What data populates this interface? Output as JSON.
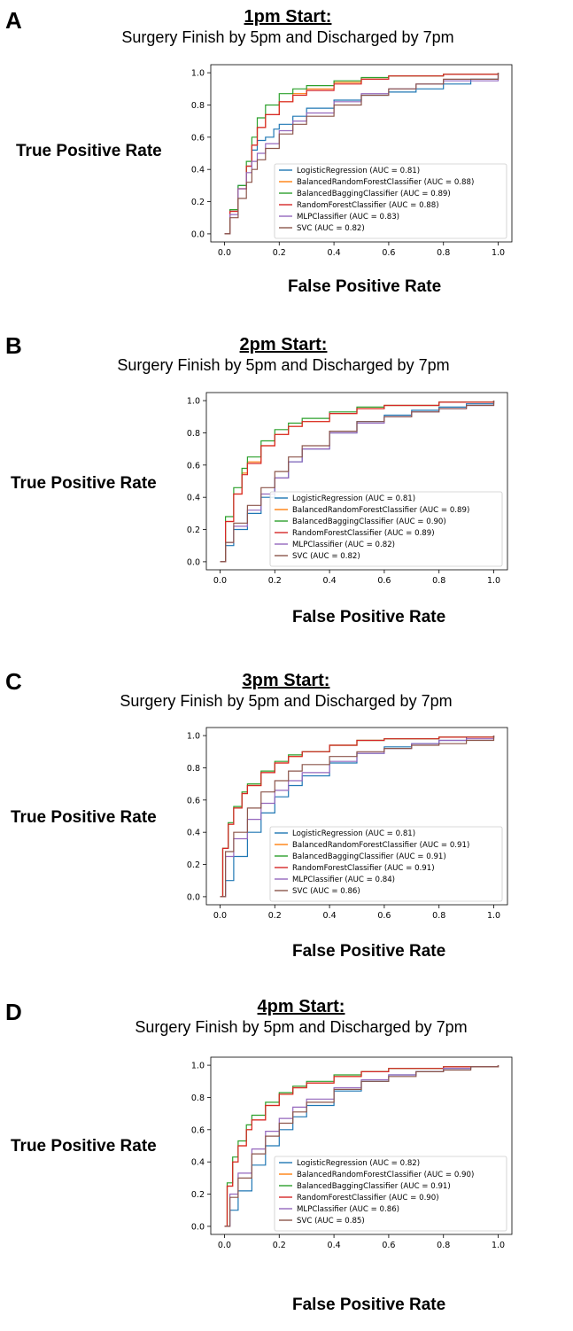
{
  "figure": {
    "colors": {
      "LogisticRegression": "#1f77b4",
      "BalancedRandomForestClassifier": "#ff7f0e",
      "BalancedBaggingClassifier": "#2ca02c",
      "RandomForestClassifier": "#d62728",
      "MLPClassifier": "#9467bd",
      "SVC": "#8c564b"
    }
  },
  "chart_data": [
    {
      "panel_label": "A",
      "type": "line",
      "title": "1pm Start:",
      "subtitle": "Surgery Finish by 5pm and Discharged by 7pm",
      "xlabel": "False Positive Rate",
      "ylabel": "True Positive Rate",
      "xlim": [
        -0.05,
        1.05
      ],
      "ylim": [
        -0.05,
        1.05
      ],
      "xticks": [
        "0.0",
        "0.2",
        "0.4",
        "0.6",
        "0.8",
        "1.0"
      ],
      "yticks": [
        "0.0",
        "0.2",
        "0.4",
        "0.6",
        "0.8",
        "1.0"
      ],
      "grid": false,
      "legend": "lower-right",
      "series": [
        {
          "name": "LogisticRegression (AUC = 0.81)",
          "color": "#1f77b4",
          "x": [
            0,
            0.02,
            0.05,
            0.08,
            0.1,
            0.12,
            0.15,
            0.18,
            0.2,
            0.25,
            0.3,
            0.4,
            0.5,
            0.6,
            0.7,
            0.8,
            0.9,
            1.0
          ],
          "y": [
            0,
            0.15,
            0.3,
            0.42,
            0.52,
            0.58,
            0.6,
            0.65,
            0.68,
            0.73,
            0.78,
            0.83,
            0.86,
            0.88,
            0.9,
            0.93,
            0.96,
            1.0
          ]
        },
        {
          "name": "BalancedRandomForestClassifier (AUC = 0.88)",
          "color": "#ff7f0e",
          "x": [
            0,
            0.02,
            0.05,
            0.08,
            0.1,
            0.12,
            0.15,
            0.2,
            0.25,
            0.3,
            0.4,
            0.5,
            0.6,
            0.8,
            1.0
          ],
          "y": [
            0,
            0.14,
            0.28,
            0.42,
            0.55,
            0.66,
            0.74,
            0.82,
            0.87,
            0.9,
            0.94,
            0.96,
            0.98,
            0.99,
            1.0
          ]
        },
        {
          "name": "BalancedBaggingClassifier (AUC = 0.89)",
          "color": "#2ca02c",
          "x": [
            0,
            0.02,
            0.05,
            0.08,
            0.1,
            0.12,
            0.15,
            0.2,
            0.25,
            0.3,
            0.4,
            0.5,
            0.6,
            0.8,
            1.0
          ],
          "y": [
            0,
            0.15,
            0.3,
            0.45,
            0.6,
            0.72,
            0.8,
            0.87,
            0.9,
            0.92,
            0.95,
            0.97,
            0.98,
            0.99,
            1.0
          ]
        },
        {
          "name": "RandomForestClassifier (AUC = 0.88)",
          "color": "#d62728",
          "x": [
            0,
            0.02,
            0.05,
            0.08,
            0.1,
            0.12,
            0.15,
            0.2,
            0.25,
            0.3,
            0.4,
            0.5,
            0.6,
            0.8,
            1.0
          ],
          "y": [
            0,
            0.14,
            0.28,
            0.42,
            0.55,
            0.66,
            0.74,
            0.82,
            0.86,
            0.89,
            0.93,
            0.96,
            0.98,
            0.99,
            1.0
          ]
        },
        {
          "name": "MLPClassifier (AUC = 0.83)",
          "color": "#9467bd",
          "x": [
            0,
            0.02,
            0.05,
            0.08,
            0.1,
            0.12,
            0.15,
            0.2,
            0.25,
            0.3,
            0.4,
            0.5,
            0.6,
            0.7,
            0.8,
            1.0
          ],
          "y": [
            0,
            0.12,
            0.28,
            0.38,
            0.45,
            0.5,
            0.56,
            0.64,
            0.7,
            0.75,
            0.82,
            0.87,
            0.9,
            0.93,
            0.95,
            1.0
          ]
        },
        {
          "name": "SVC (AUC = 0.82)",
          "color": "#8c564b",
          "x": [
            0,
            0.02,
            0.05,
            0.08,
            0.1,
            0.12,
            0.15,
            0.2,
            0.25,
            0.3,
            0.4,
            0.5,
            0.6,
            0.7,
            0.8,
            1.0
          ],
          "y": [
            0,
            0.1,
            0.22,
            0.32,
            0.4,
            0.46,
            0.53,
            0.62,
            0.68,
            0.73,
            0.8,
            0.86,
            0.9,
            0.93,
            0.96,
            1.0
          ]
        }
      ]
    },
    {
      "panel_label": "B",
      "type": "line",
      "title": "2pm Start:",
      "subtitle": "Surgery Finish by 5pm and Discharged by 7pm",
      "xlabel": "False Positive Rate",
      "ylabel": "True Positive Rate",
      "xlim": [
        -0.05,
        1.05
      ],
      "ylim": [
        -0.05,
        1.05
      ],
      "xticks": [
        "0.0",
        "0.2",
        "0.4",
        "0.6",
        "0.8",
        "1.0"
      ],
      "yticks": [
        "0.0",
        "0.2",
        "0.4",
        "0.6",
        "0.8",
        "1.0"
      ],
      "grid": false,
      "legend": "lower-right",
      "series": [
        {
          "name": "LogisticRegression (AUC = 0.81)",
          "color": "#1f77b4",
          "x": [
            0,
            0.02,
            0.05,
            0.1,
            0.15,
            0.2,
            0.25,
            0.3,
            0.4,
            0.5,
            0.6,
            0.7,
            0.8,
            0.9,
            1.0
          ],
          "y": [
            0,
            0.1,
            0.2,
            0.3,
            0.4,
            0.52,
            0.62,
            0.7,
            0.8,
            0.87,
            0.91,
            0.94,
            0.96,
            0.98,
            1.0
          ]
        },
        {
          "name": "BalancedRandomForestClassifier (AUC = 0.89)",
          "color": "#ff7f0e",
          "x": [
            0,
            0.02,
            0.05,
            0.08,
            0.1,
            0.15,
            0.2,
            0.25,
            0.3,
            0.4,
            0.5,
            0.6,
            0.8,
            1.0
          ],
          "y": [
            0,
            0.25,
            0.42,
            0.55,
            0.62,
            0.72,
            0.79,
            0.84,
            0.87,
            0.92,
            0.95,
            0.97,
            0.99,
            1.0
          ]
        },
        {
          "name": "BalancedBaggingClassifier (AUC = 0.90)",
          "color": "#2ca02c",
          "x": [
            0,
            0.02,
            0.05,
            0.08,
            0.1,
            0.15,
            0.2,
            0.25,
            0.3,
            0.4,
            0.5,
            0.6,
            0.8,
            1.0
          ],
          "y": [
            0,
            0.28,
            0.46,
            0.58,
            0.65,
            0.75,
            0.82,
            0.86,
            0.89,
            0.93,
            0.96,
            0.97,
            0.99,
            1.0
          ]
        },
        {
          "name": "RandomForestClassifier (AUC = 0.89)",
          "color": "#d62728",
          "x": [
            0,
            0.02,
            0.05,
            0.08,
            0.1,
            0.15,
            0.2,
            0.25,
            0.3,
            0.4,
            0.5,
            0.6,
            0.8,
            1.0
          ],
          "y": [
            0,
            0.25,
            0.42,
            0.54,
            0.61,
            0.72,
            0.79,
            0.84,
            0.87,
            0.92,
            0.95,
            0.97,
            0.99,
            1.0
          ]
        },
        {
          "name": "MLPClassifier (AUC = 0.82)",
          "color": "#9467bd",
          "x": [
            0,
            0.02,
            0.05,
            0.1,
            0.15,
            0.2,
            0.25,
            0.3,
            0.4,
            0.5,
            0.6,
            0.7,
            0.8,
            0.9,
            1.0
          ],
          "y": [
            0,
            0.12,
            0.22,
            0.32,
            0.42,
            0.52,
            0.62,
            0.7,
            0.8,
            0.86,
            0.9,
            0.93,
            0.95,
            0.97,
            1.0
          ]
        },
        {
          "name": "SVC (AUC = 0.82)",
          "color": "#8c564b",
          "x": [
            0,
            0.02,
            0.05,
            0.1,
            0.15,
            0.2,
            0.25,
            0.3,
            0.4,
            0.5,
            0.6,
            0.7,
            0.8,
            0.9,
            1.0
          ],
          "y": [
            0,
            0.12,
            0.24,
            0.35,
            0.46,
            0.56,
            0.65,
            0.72,
            0.81,
            0.87,
            0.9,
            0.93,
            0.95,
            0.97,
            1.0
          ]
        }
      ]
    },
    {
      "panel_label": "C",
      "type": "line",
      "title": "3pm Start:",
      "subtitle": "Surgery Finish by 5pm and Discharged by 7pm",
      "xlabel": "False Positive Rate",
      "ylabel": "True Positive Rate",
      "xlim": [
        -0.05,
        1.05
      ],
      "ylim": [
        -0.05,
        1.05
      ],
      "xticks": [
        "0.0",
        "0.2",
        "0.4",
        "0.6",
        "0.8",
        "1.0"
      ],
      "yticks": [
        "0.0",
        "0.2",
        "0.4",
        "0.6",
        "0.8",
        "1.0"
      ],
      "grid": false,
      "legend": "lower-right",
      "series": [
        {
          "name": "LogisticRegression (AUC = 0.81)",
          "color": "#1f77b4",
          "x": [
            0,
            0.02,
            0.05,
            0.1,
            0.15,
            0.2,
            0.25,
            0.3,
            0.4,
            0.5,
            0.6,
            0.7,
            0.8,
            0.9,
            1.0
          ],
          "y": [
            0,
            0.1,
            0.25,
            0.4,
            0.52,
            0.62,
            0.69,
            0.75,
            0.83,
            0.89,
            0.93,
            0.95,
            0.97,
            0.99,
            1.0
          ]
        },
        {
          "name": "BalancedRandomForestClassifier (AUC = 0.91)",
          "color": "#ff7f0e",
          "x": [
            0,
            0.01,
            0.03,
            0.05,
            0.08,
            0.1,
            0.15,
            0.2,
            0.25,
            0.3,
            0.4,
            0.5,
            0.6,
            0.8,
            1.0
          ],
          "y": [
            0,
            0.3,
            0.45,
            0.55,
            0.64,
            0.69,
            0.77,
            0.83,
            0.87,
            0.9,
            0.94,
            0.97,
            0.98,
            0.99,
            1.0
          ]
        },
        {
          "name": "BalancedBaggingClassifier (AUC = 0.91)",
          "color": "#2ca02c",
          "x": [
            0,
            0.01,
            0.03,
            0.05,
            0.08,
            0.1,
            0.15,
            0.2,
            0.25,
            0.3,
            0.4,
            0.5,
            0.6,
            0.8,
            1.0
          ],
          "y": [
            0,
            0.3,
            0.46,
            0.56,
            0.65,
            0.7,
            0.78,
            0.84,
            0.88,
            0.9,
            0.94,
            0.97,
            0.98,
            0.99,
            1.0
          ]
        },
        {
          "name": "RandomForestClassifier (AUC = 0.91)",
          "color": "#d62728",
          "x": [
            0,
            0.01,
            0.03,
            0.05,
            0.08,
            0.1,
            0.15,
            0.2,
            0.25,
            0.3,
            0.4,
            0.5,
            0.6,
            0.8,
            1.0
          ],
          "y": [
            0,
            0.3,
            0.45,
            0.55,
            0.64,
            0.69,
            0.77,
            0.83,
            0.87,
            0.9,
            0.94,
            0.97,
            0.98,
            0.99,
            1.0
          ]
        },
        {
          "name": "MLPClassifier (AUC = 0.84)",
          "color": "#9467bd",
          "x": [
            0,
            0.02,
            0.05,
            0.1,
            0.15,
            0.2,
            0.25,
            0.3,
            0.4,
            0.5,
            0.6,
            0.7,
            0.8,
            0.9,
            1.0
          ],
          "y": [
            0,
            0.25,
            0.36,
            0.48,
            0.58,
            0.66,
            0.72,
            0.77,
            0.84,
            0.89,
            0.92,
            0.95,
            0.97,
            0.98,
            1.0
          ]
        },
        {
          "name": "SVC (AUC = 0.86)",
          "color": "#8c564b",
          "x": [
            0,
            0.02,
            0.05,
            0.1,
            0.15,
            0.2,
            0.25,
            0.3,
            0.4,
            0.5,
            0.6,
            0.7,
            0.8,
            0.9,
            1.0
          ],
          "y": [
            0,
            0.28,
            0.4,
            0.55,
            0.65,
            0.72,
            0.78,
            0.82,
            0.87,
            0.9,
            0.92,
            0.94,
            0.95,
            0.97,
            1.0
          ]
        }
      ]
    },
    {
      "panel_label": "D",
      "type": "line",
      "title": "4pm Start:",
      "subtitle": "Surgery Finish by 5pm and Discharged by 7pm",
      "xlabel": "False Positive Rate",
      "ylabel": "True Positive Rate",
      "xlim": [
        -0.05,
        1.05
      ],
      "ylim": [
        -0.05,
        1.05
      ],
      "xticks": [
        "0.0",
        "0.2",
        "0.4",
        "0.6",
        "0.8",
        "1.0"
      ],
      "yticks": [
        "0.0",
        "0.2",
        "0.4",
        "0.6",
        "0.8",
        "1.0"
      ],
      "grid": false,
      "legend": "lower-right",
      "series": [
        {
          "name": "LogisticRegression (AUC = 0.82)",
          "color": "#1f77b4",
          "x": [
            0,
            0.02,
            0.05,
            0.1,
            0.15,
            0.2,
            0.25,
            0.3,
            0.4,
            0.5,
            0.6,
            0.7,
            0.8,
            0.9,
            1.0
          ],
          "y": [
            0,
            0.1,
            0.22,
            0.38,
            0.5,
            0.6,
            0.68,
            0.75,
            0.84,
            0.9,
            0.94,
            0.96,
            0.98,
            0.99,
            1.0
          ]
        },
        {
          "name": "BalancedRandomForestClassifier (AUC = 0.90)",
          "color": "#ff7f0e",
          "x": [
            0,
            0.01,
            0.03,
            0.05,
            0.08,
            0.1,
            0.15,
            0.2,
            0.25,
            0.3,
            0.4,
            0.5,
            0.6,
            0.8,
            1.0
          ],
          "y": [
            0,
            0.25,
            0.4,
            0.5,
            0.6,
            0.66,
            0.75,
            0.82,
            0.86,
            0.89,
            0.93,
            0.96,
            0.98,
            0.99,
            1.0
          ]
        },
        {
          "name": "BalancedBaggingClassifier (AUC = 0.91)",
          "color": "#2ca02c",
          "x": [
            0,
            0.01,
            0.03,
            0.05,
            0.08,
            0.1,
            0.15,
            0.2,
            0.25,
            0.3,
            0.4,
            0.5,
            0.6,
            0.8,
            1.0
          ],
          "y": [
            0,
            0.27,
            0.43,
            0.53,
            0.63,
            0.69,
            0.77,
            0.83,
            0.87,
            0.9,
            0.94,
            0.96,
            0.98,
            0.99,
            1.0
          ]
        },
        {
          "name": "RandomForestClassifier (AUC = 0.90)",
          "color": "#d62728",
          "x": [
            0,
            0.01,
            0.03,
            0.05,
            0.08,
            0.1,
            0.15,
            0.2,
            0.25,
            0.3,
            0.4,
            0.5,
            0.6,
            0.8,
            1.0
          ],
          "y": [
            0,
            0.25,
            0.4,
            0.5,
            0.6,
            0.66,
            0.75,
            0.82,
            0.86,
            0.89,
            0.93,
            0.96,
            0.98,
            0.99,
            1.0
          ]
        },
        {
          "name": "MLPClassifier (AUC = 0.86)",
          "color": "#9467bd",
          "x": [
            0,
            0.02,
            0.05,
            0.1,
            0.15,
            0.2,
            0.25,
            0.3,
            0.4,
            0.5,
            0.6,
            0.7,
            0.8,
            0.9,
            1.0
          ],
          "y": [
            0,
            0.2,
            0.33,
            0.48,
            0.59,
            0.67,
            0.74,
            0.79,
            0.86,
            0.91,
            0.94,
            0.96,
            0.98,
            0.99,
            1.0
          ]
        },
        {
          "name": "SVC (AUC = 0.85)",
          "color": "#8c564b",
          "x": [
            0,
            0.02,
            0.05,
            0.1,
            0.15,
            0.2,
            0.25,
            0.3,
            0.4,
            0.5,
            0.6,
            0.7,
            0.8,
            0.9,
            1.0
          ],
          "y": [
            0,
            0.18,
            0.3,
            0.45,
            0.56,
            0.64,
            0.71,
            0.77,
            0.85,
            0.9,
            0.93,
            0.96,
            0.97,
            0.99,
            1.0
          ]
        }
      ]
    }
  ]
}
